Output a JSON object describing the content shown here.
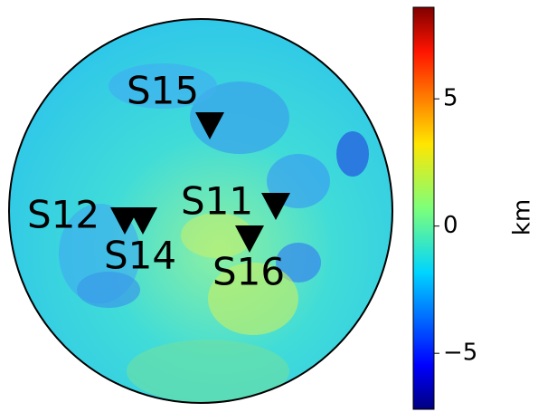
{
  "map": {
    "stations": [
      {
        "label": "S15"
      },
      {
        "label": "S12"
      },
      {
        "label": "S14"
      },
      {
        "label": "S11"
      },
      {
        "label": "S16"
      }
    ]
  },
  "colorbar": {
    "label": "km",
    "lim": [
      -7.2,
      8.6
    ],
    "ticks": [
      5,
      0,
      {
        "value": -5,
        "label": "−5"
      }
    ]
  }
}
